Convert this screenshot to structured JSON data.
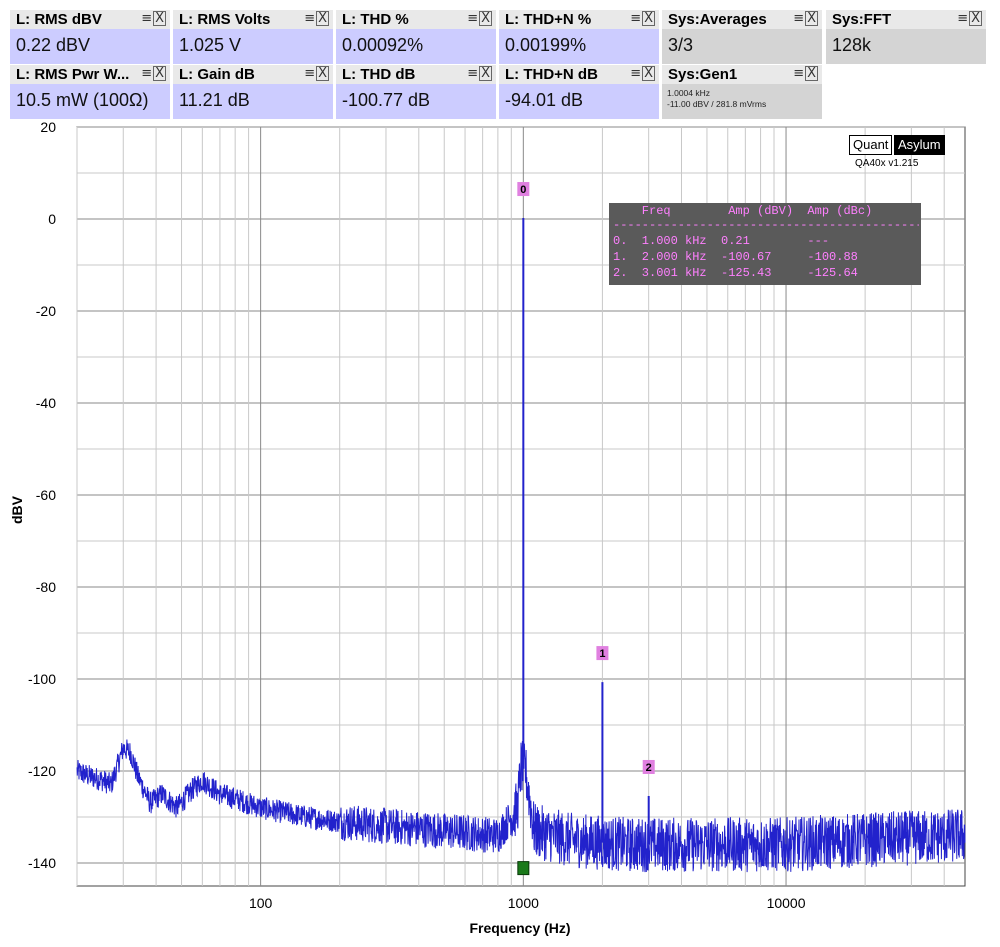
{
  "widgets_row1": [
    {
      "title": "L: RMS dBV",
      "value": "0.22 dBV",
      "ctl": "≡",
      "close": "X"
    },
    {
      "title": "L: RMS Volts",
      "value": "1.025 V",
      "ctl": "≡",
      "close": "X"
    },
    {
      "title": "L: THD %",
      "value": "0.00092%",
      "ctl": "≡",
      "close": "X"
    },
    {
      "title": "L: THD+N %",
      "value": "0.00199%",
      "ctl": "≡",
      "close": "X"
    },
    {
      "title": "Sys:Averages",
      "value": "3/3",
      "ctl": "≡",
      "close": "X"
    },
    {
      "title": "Sys:FFT",
      "value": "128k",
      "ctl": "≡",
      "close": "X"
    }
  ],
  "widgets_row2": [
    {
      "title": "L: RMS Pwr W...",
      "value": "10.5 mW (100Ω)",
      "ctl": "≡",
      "close": "X"
    },
    {
      "title": "L: Gain dB",
      "value": "11.21 dB",
      "ctl": "≡",
      "close": "X"
    },
    {
      "title": "L: THD dB",
      "value": "-100.77 dB",
      "ctl": "≡",
      "close": "X"
    },
    {
      "title": "L: THD+N dB",
      "value": "-94.01 dB",
      "ctl": "≡",
      "close": "X"
    },
    {
      "title": "Sys:Gen1",
      "line1": "1.0004 kHz",
      "line2": "-11.00 dBV  / 281.8 mVrms",
      "ctl": "≡",
      "close": "X"
    }
  ],
  "logo": {
    "quant": "Quant",
    "asylum": "Asylum",
    "version": "QA40x v1.215"
  },
  "peak_table": {
    "header": "    Freq        Amp (dBV)  Amp (dBc)",
    "divider": "--------------------------------------------",
    "rows": [
      "0.  1.000 kHz  0.21        ---",
      "1.  2.000 kHz  -100.67     -100.88",
      "2.  3.001 kHz  -125.43     -125.64"
    ]
  },
  "chart_data": {
    "type": "line",
    "xlabel": "Frequency (Hz)",
    "ylabel": "dBV",
    "xscale": "log",
    "xlim": [
      20,
      48000
    ],
    "ylim": [
      -145,
      20
    ],
    "yticks": [
      20,
      0,
      -20,
      -40,
      -60,
      -80,
      -100,
      -120,
      -140
    ],
    "xticks": [
      100,
      1000,
      10000
    ],
    "xtick_labels": [
      "100",
      "1000",
      "10000"
    ],
    "ytick_labels": [
      "20",
      "0",
      "-20",
      "-40",
      "-60",
      "-80",
      "-100",
      "-120",
      "-140"
    ],
    "grid": true,
    "line_color": "#2222cc",
    "peaks": [
      {
        "label": "0",
        "freq": 1000,
        "amp": 0.21
      },
      {
        "label": "1",
        "freq": 2000,
        "amp": -100.67
      },
      {
        "label": "2",
        "freq": 3001,
        "amp": -125.43
      }
    ],
    "noise_floor_points": [
      [
        20,
        -120
      ],
      [
        22,
        -121
      ],
      [
        25,
        -122
      ],
      [
        27,
        -123
      ],
      [
        30,
        -115
      ],
      [
        32,
        -116
      ],
      [
        34,
        -121
      ],
      [
        38,
        -127
      ],
      [
        42,
        -125
      ],
      [
        48,
        -128
      ],
      [
        55,
        -124
      ],
      [
        60,
        -122
      ],
      [
        70,
        -125
      ],
      [
        80,
        -126
      ],
      [
        100,
        -128
      ],
      [
        150,
        -130
      ],
      [
        200,
        -131
      ],
      [
        300,
        -132
      ],
      [
        500,
        -133
      ],
      [
        800,
        -134
      ],
      [
        950,
        -128
      ],
      [
        980,
        -119
      ],
      [
        1020,
        -120
      ],
      [
        1100,
        -133
      ],
      [
        1500,
        -135
      ],
      [
        2500,
        -136
      ],
      [
        5000,
        -136
      ],
      [
        10000,
        -136
      ],
      [
        20000,
        -135
      ],
      [
        48000,
        -134
      ]
    ],
    "marker_label_color": "#e080e0",
    "green_marker": {
      "freq": 1000,
      "amp": -141
    }
  }
}
